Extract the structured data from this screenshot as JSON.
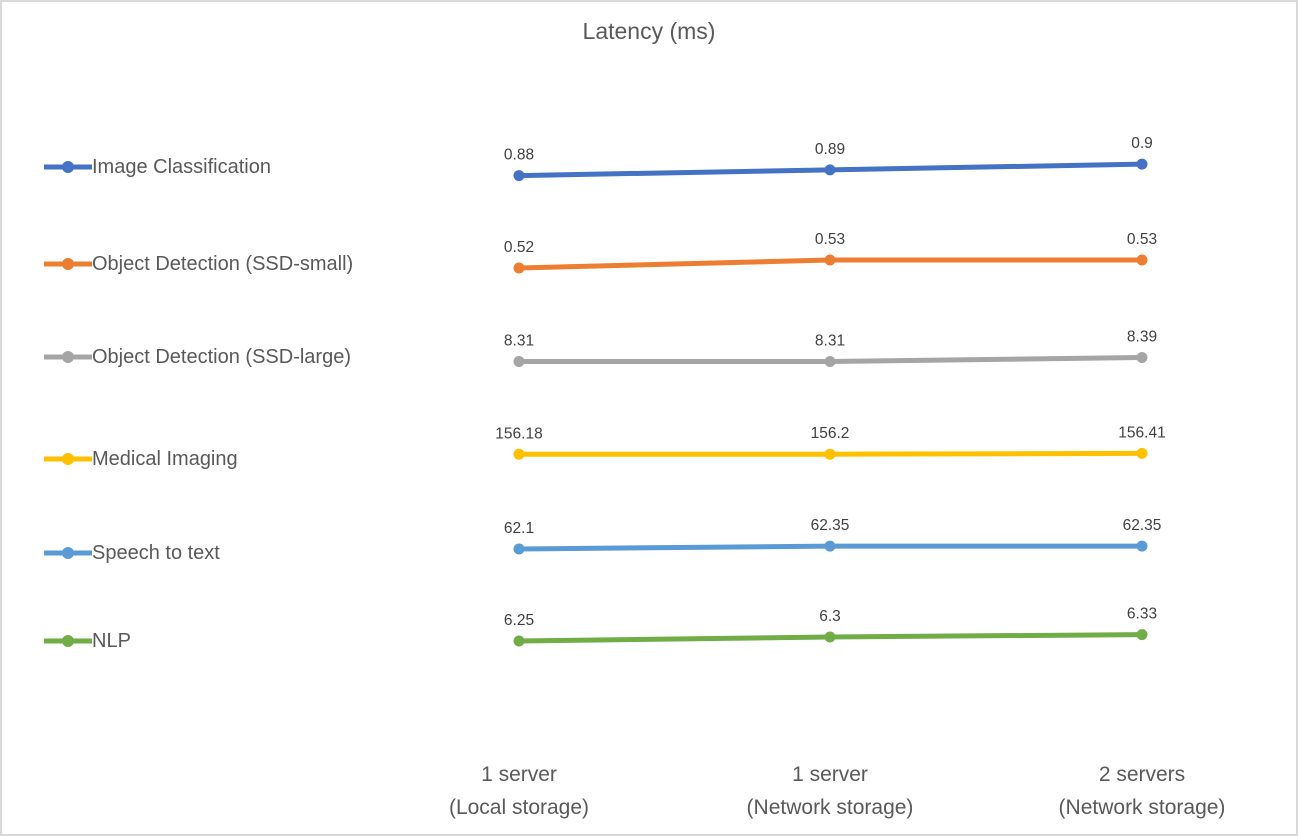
{
  "chart_data": {
    "type": "line",
    "title": "Latency (ms)",
    "categories": [
      {
        "line1": "1 server",
        "line2": "(Local storage)"
      },
      {
        "line1": "1 server",
        "line2": "(Network storage)"
      },
      {
        "line1": "2 servers",
        "line2": "(Network storage)"
      }
    ],
    "series": [
      {
        "name": "Image Classification",
        "color": "#4472C4",
        "values": [
          0.88,
          0.89,
          0.9
        ],
        "ylim": [
          0.86,
          0.93
        ]
      },
      {
        "name": "Object Detection (SSD-small)",
        "color": "#ED7D31",
        "values": [
          0.52,
          0.53,
          0.53
        ],
        "ylim": [
          0.5,
          0.55
        ]
      },
      {
        "name": "Object Detection (SSD-large)",
        "color": "#A5A5A5",
        "values": [
          8.31,
          8.31,
          8.39
        ],
        "ylim": [
          8.0,
          8.8
        ]
      },
      {
        "name": "Medical Imaging",
        "color": "#FFC000",
        "values": [
          156.18,
          156.2,
          156.41
        ],
        "ylim": [
          150,
          160
        ]
      },
      {
        "name": "Speech to text",
        "color": "#5B9BD5",
        "values": [
          62.1,
          62.35,
          62.35
        ],
        "ylim": [
          60,
          63.5
        ]
      },
      {
        "name": "NLP",
        "color": "#70AD47",
        "values": [
          6.25,
          6.3,
          6.33
        ],
        "ylim": [
          6.0,
          6.5
        ]
      }
    ],
    "layout": {
      "legend_position": "left",
      "data_labels": "above",
      "grid": false,
      "marker": "circle",
      "background": "#ffffff",
      "border_color": "#d9d9d9",
      "title_color": "#595959",
      "axis_text_color": "#595959",
      "data_label_color": "#404040"
    }
  }
}
